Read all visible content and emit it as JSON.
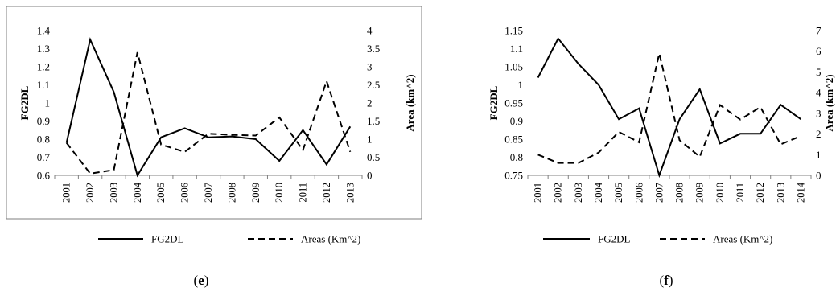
{
  "chart_data": [
    {
      "type": "line",
      "panel_label": "e",
      "title": "",
      "xlabel": "",
      "ylabel": "FG2DL",
      "y2label": "Area (km^2)",
      "ylim": [
        0.6,
        1.4
      ],
      "y2lim": [
        0,
        4
      ],
      "y_ticks": [
        "0.6",
        "0.7",
        "0.8",
        "0.9",
        "1",
        "1.1",
        "1.2",
        "1.3",
        "1.4"
      ],
      "y2_ticks": [
        "0",
        "0.5",
        "1",
        "1.5",
        "2",
        "2.5",
        "3",
        "3.5",
        "4"
      ],
      "categories": [
        "2001",
        "2002",
        "2003",
        "2004",
        "2005",
        "2006",
        "2007",
        "2008",
        "2009",
        "2010",
        "2011",
        "2012",
        "2013"
      ],
      "grid": false,
      "legend_position": "bottom",
      "series": [
        {
          "name": "FG2DL",
          "axis": "left",
          "style": "solid",
          "values": [
            0.78,
            1.35,
            1.06,
            0.6,
            0.81,
            0.86,
            0.81,
            0.815,
            0.8,
            0.68,
            0.85,
            0.66,
            0.87
          ]
        },
        {
          "name": "Areas (Km^2)",
          "axis": "right",
          "style": "dashed",
          "values": [
            0.9,
            0.05,
            0.15,
            3.4,
            0.85,
            0.65,
            1.15,
            1.12,
            1.1,
            1.6,
            0.7,
            2.6,
            0.65
          ]
        }
      ]
    },
    {
      "type": "line",
      "panel_label": "f",
      "title": "",
      "xlabel": "",
      "ylabel": "FG2DL",
      "y2label": "Area (km^2)",
      "ylim": [
        0.75,
        1.15
      ],
      "y2lim": [
        0,
        7
      ],
      "y_ticks": [
        "0.75",
        "0.8",
        "0.85",
        "0.9",
        "0.95",
        "1",
        "1.05",
        "1.1",
        "1.15"
      ],
      "y2_ticks": [
        "0",
        "1",
        "2",
        "3",
        "4",
        "5",
        "6",
        "7"
      ],
      "categories": [
        "2001",
        "2002",
        "2003",
        "2004",
        "2005",
        "2006",
        "2007",
        "2008",
        "2009",
        "2010",
        "2011",
        "2012",
        "2013",
        "2014"
      ],
      "grid": false,
      "legend_position": "bottom",
      "series": [
        {
          "name": "FG2DL",
          "axis": "left",
          "style": "solid",
          "values": [
            1.02,
            1.128,
            1.058,
            1.0,
            0.905,
            0.935,
            0.75,
            0.905,
            0.988,
            0.838,
            0.865,
            0.865,
            0.945,
            0.905
          ]
        },
        {
          "name": "Areas (Km^2)",
          "axis": "right",
          "style": "dashed",
          "values": [
            1.0,
            0.6,
            0.6,
            1.1,
            2.1,
            1.6,
            5.9,
            1.7,
            0.9,
            3.4,
            2.7,
            3.3,
            1.5,
            1.9
          ]
        }
      ]
    }
  ]
}
